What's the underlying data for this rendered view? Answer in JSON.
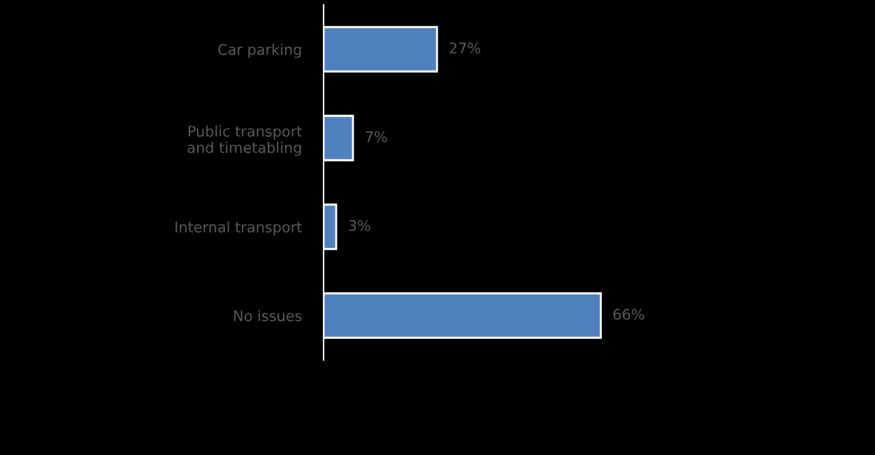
{
  "chart_data": {
    "type": "bar",
    "orientation": "horizontal",
    "categories": [
      "Car parking",
      "Public transport\nand timetabling",
      "Internal transport",
      "No issues"
    ],
    "values": [
      27,
      7,
      3,
      66
    ],
    "value_labels": [
      "27%",
      "7%",
      "3%",
      "66%"
    ],
    "color": "#4f81bd",
    "grid": false,
    "legend": false
  }
}
